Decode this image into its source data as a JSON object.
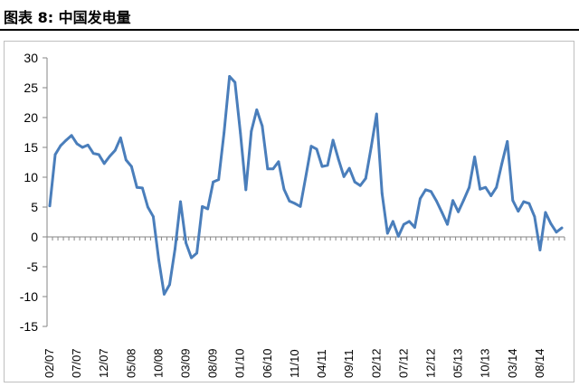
{
  "figure": {
    "title": "图表 8: 中国发电量"
  },
  "chart_data": {
    "type": "line",
    "title": "",
    "xlabel": "",
    "ylabel": "",
    "ylim": [
      -15,
      30
    ],
    "yticks": [
      30,
      25,
      20,
      15,
      10,
      5,
      0,
      -5,
      -10,
      -15
    ],
    "x_tick_labels": [
      "02/07",
      "07/07",
      "12/07",
      "05/08",
      "10/08",
      "03/09",
      "08/09",
      "01/10",
      "06/10",
      "11/10",
      "04/11",
      "09/11",
      "02/12",
      "07/12",
      "12/12",
      "05/13",
      "10/13",
      "03/14",
      "08/14"
    ],
    "grid": false,
    "legend": "none",
    "color": "#4a7ebb",
    "series": [
      {
        "values": [
          5.2,
          13.8,
          15.3,
          16.2,
          17,
          15.6,
          15,
          15.4,
          14,
          13.8,
          12.3,
          13.5,
          14.5,
          16.6,
          12.9,
          11.8,
          8.3,
          8.2,
          5,
          3.4,
          -3.8,
          -9.6,
          -8,
          -2,
          5.9,
          -1,
          -3.5,
          -2.7,
          5.1,
          4.7,
          9.2,
          9.6,
          17.5,
          26.9,
          25.9,
          17.4,
          7.9,
          17.7,
          21.3,
          18.6,
          11.4,
          11.4,
          12.6,
          8,
          6,
          5.6,
          5.1,
          10.1,
          15.2,
          14.7,
          11.8,
          12,
          16.2,
          13,
          10.1,
          11.5,
          9.2,
          8.6,
          9.8,
          15,
          20.6,
          7.3,
          0.6,
          2.6,
          0.1,
          2.1,
          2.6,
          1.6,
          6.4,
          7.9,
          7.6,
          6,
          4.1,
          2.1,
          6.1,
          4.2,
          6.2,
          8.3,
          13.4,
          8,
          8.3,
          6.9,
          8.3,
          12.3,
          16,
          6.1,
          4.3,
          5.9,
          5.6,
          3.4,
          -2.2,
          4.1,
          2.2,
          0.8,
          1.5
        ]
      }
    ]
  }
}
